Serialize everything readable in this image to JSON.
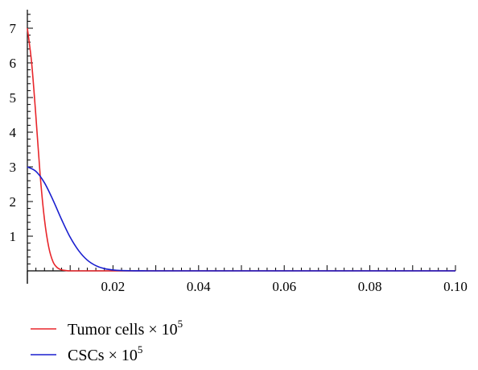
{
  "chart_data": {
    "type": "line",
    "title": "",
    "xlabel": "",
    "ylabel": "",
    "xlim": [
      0,
      0.1
    ],
    "ylim": [
      0,
      7.5
    ],
    "x_ticks": [
      "0.02",
      "0.04",
      "0.06",
      "0.08",
      "0.10"
    ],
    "y_ticks": [
      "1",
      "2",
      "3",
      "4",
      "5",
      "6",
      "7"
    ],
    "grid": false,
    "legend_position": "bottom-left",
    "series": [
      {
        "name_main": "Tumor cells × 10",
        "name_sup": "5",
        "color": "#e8262b",
        "x": [
          0,
          0.001,
          0.002,
          0.003,
          0.004,
          0.005,
          0.006,
          0.007,
          0.008,
          0.009,
          0.01,
          0.012,
          0.015,
          0.02,
          0.03,
          0.05,
          0.1
        ],
        "y": [
          7.0,
          6.0,
          4.45,
          2.75,
          1.48,
          0.68,
          0.26,
          0.09,
          0.03,
          0.01,
          0.0,
          0.0,
          0.0,
          0.0,
          0.0,
          0.0,
          0.0
        ]
      },
      {
        "name_main": "CSCs × 10",
        "name_sup": "5",
        "color": "#1a1fcf",
        "x": [
          0,
          0.002,
          0.004,
          0.006,
          0.008,
          0.01,
          0.012,
          0.014,
          0.016,
          0.018,
          0.02,
          0.022,
          0.024,
          0.026,
          0.028,
          0.03,
          0.035,
          0.05,
          0.1
        ],
        "y": [
          3.0,
          2.87,
          2.54,
          2.04,
          1.48,
          0.97,
          0.58,
          0.31,
          0.15,
          0.065,
          0.025,
          0.009,
          0.003,
          0.001,
          0.0,
          0.0,
          0.0,
          0.0,
          0.0
        ]
      }
    ]
  }
}
